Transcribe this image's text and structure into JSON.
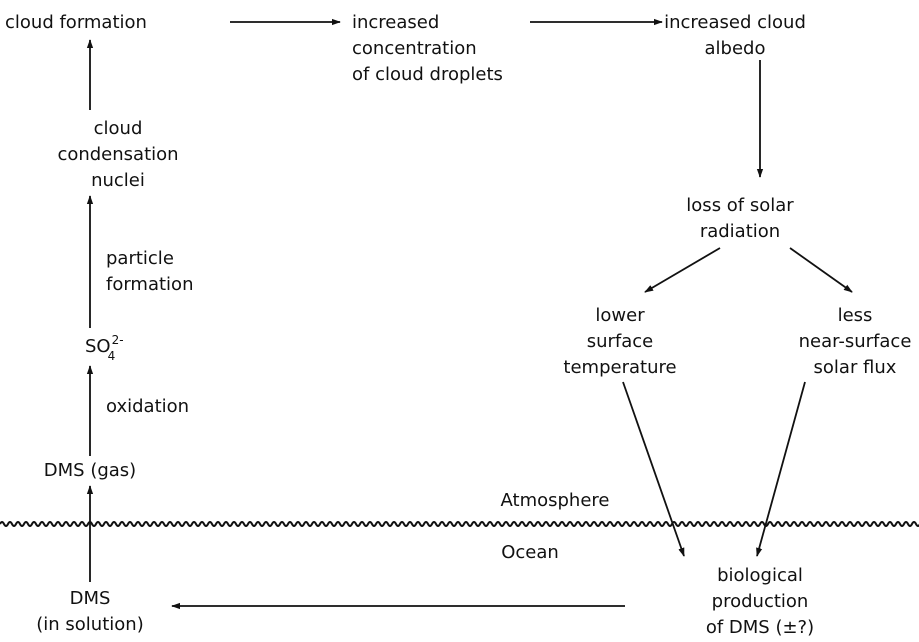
{
  "nodes": [
    {
      "id": "cloud-formation",
      "lines": [
        "cloud formation"
      ]
    },
    {
      "id": "droplets",
      "lines": [
        "increased",
        "concentration",
        "of cloud droplets"
      ]
    },
    {
      "id": "albedo",
      "lines": [
        "increased cloud",
        "albedo"
      ]
    },
    {
      "id": "ccn",
      "lines": [
        "cloud",
        "condensation",
        "nuclei"
      ]
    },
    {
      "id": "sulfate",
      "formula": {
        "base": "SO",
        "subscript": "4",
        "superscript": "2-"
      }
    },
    {
      "id": "dms-gas",
      "lines": [
        "DMS (gas)"
      ]
    },
    {
      "id": "dms-solution",
      "lines": [
        "DMS",
        "(in solution)"
      ]
    },
    {
      "id": "loss",
      "lines": [
        "loss of solar",
        "radiation"
      ]
    },
    {
      "id": "temperature",
      "lines": [
        "lower",
        "surface",
        "temperature"
      ]
    },
    {
      "id": "flux",
      "lines": [
        "less",
        "near-surface",
        "solar flux"
      ]
    },
    {
      "id": "production",
      "lines": [
        "biological",
        "production",
        "of DMS (±?)"
      ]
    }
  ],
  "edge_labels": [
    {
      "lines": [
        "particle",
        "formation"
      ]
    },
    {
      "lines": [
        "oxidation"
      ]
    }
  ],
  "regions": {
    "upper": "Atmosphere",
    "lower": "Ocean"
  }
}
